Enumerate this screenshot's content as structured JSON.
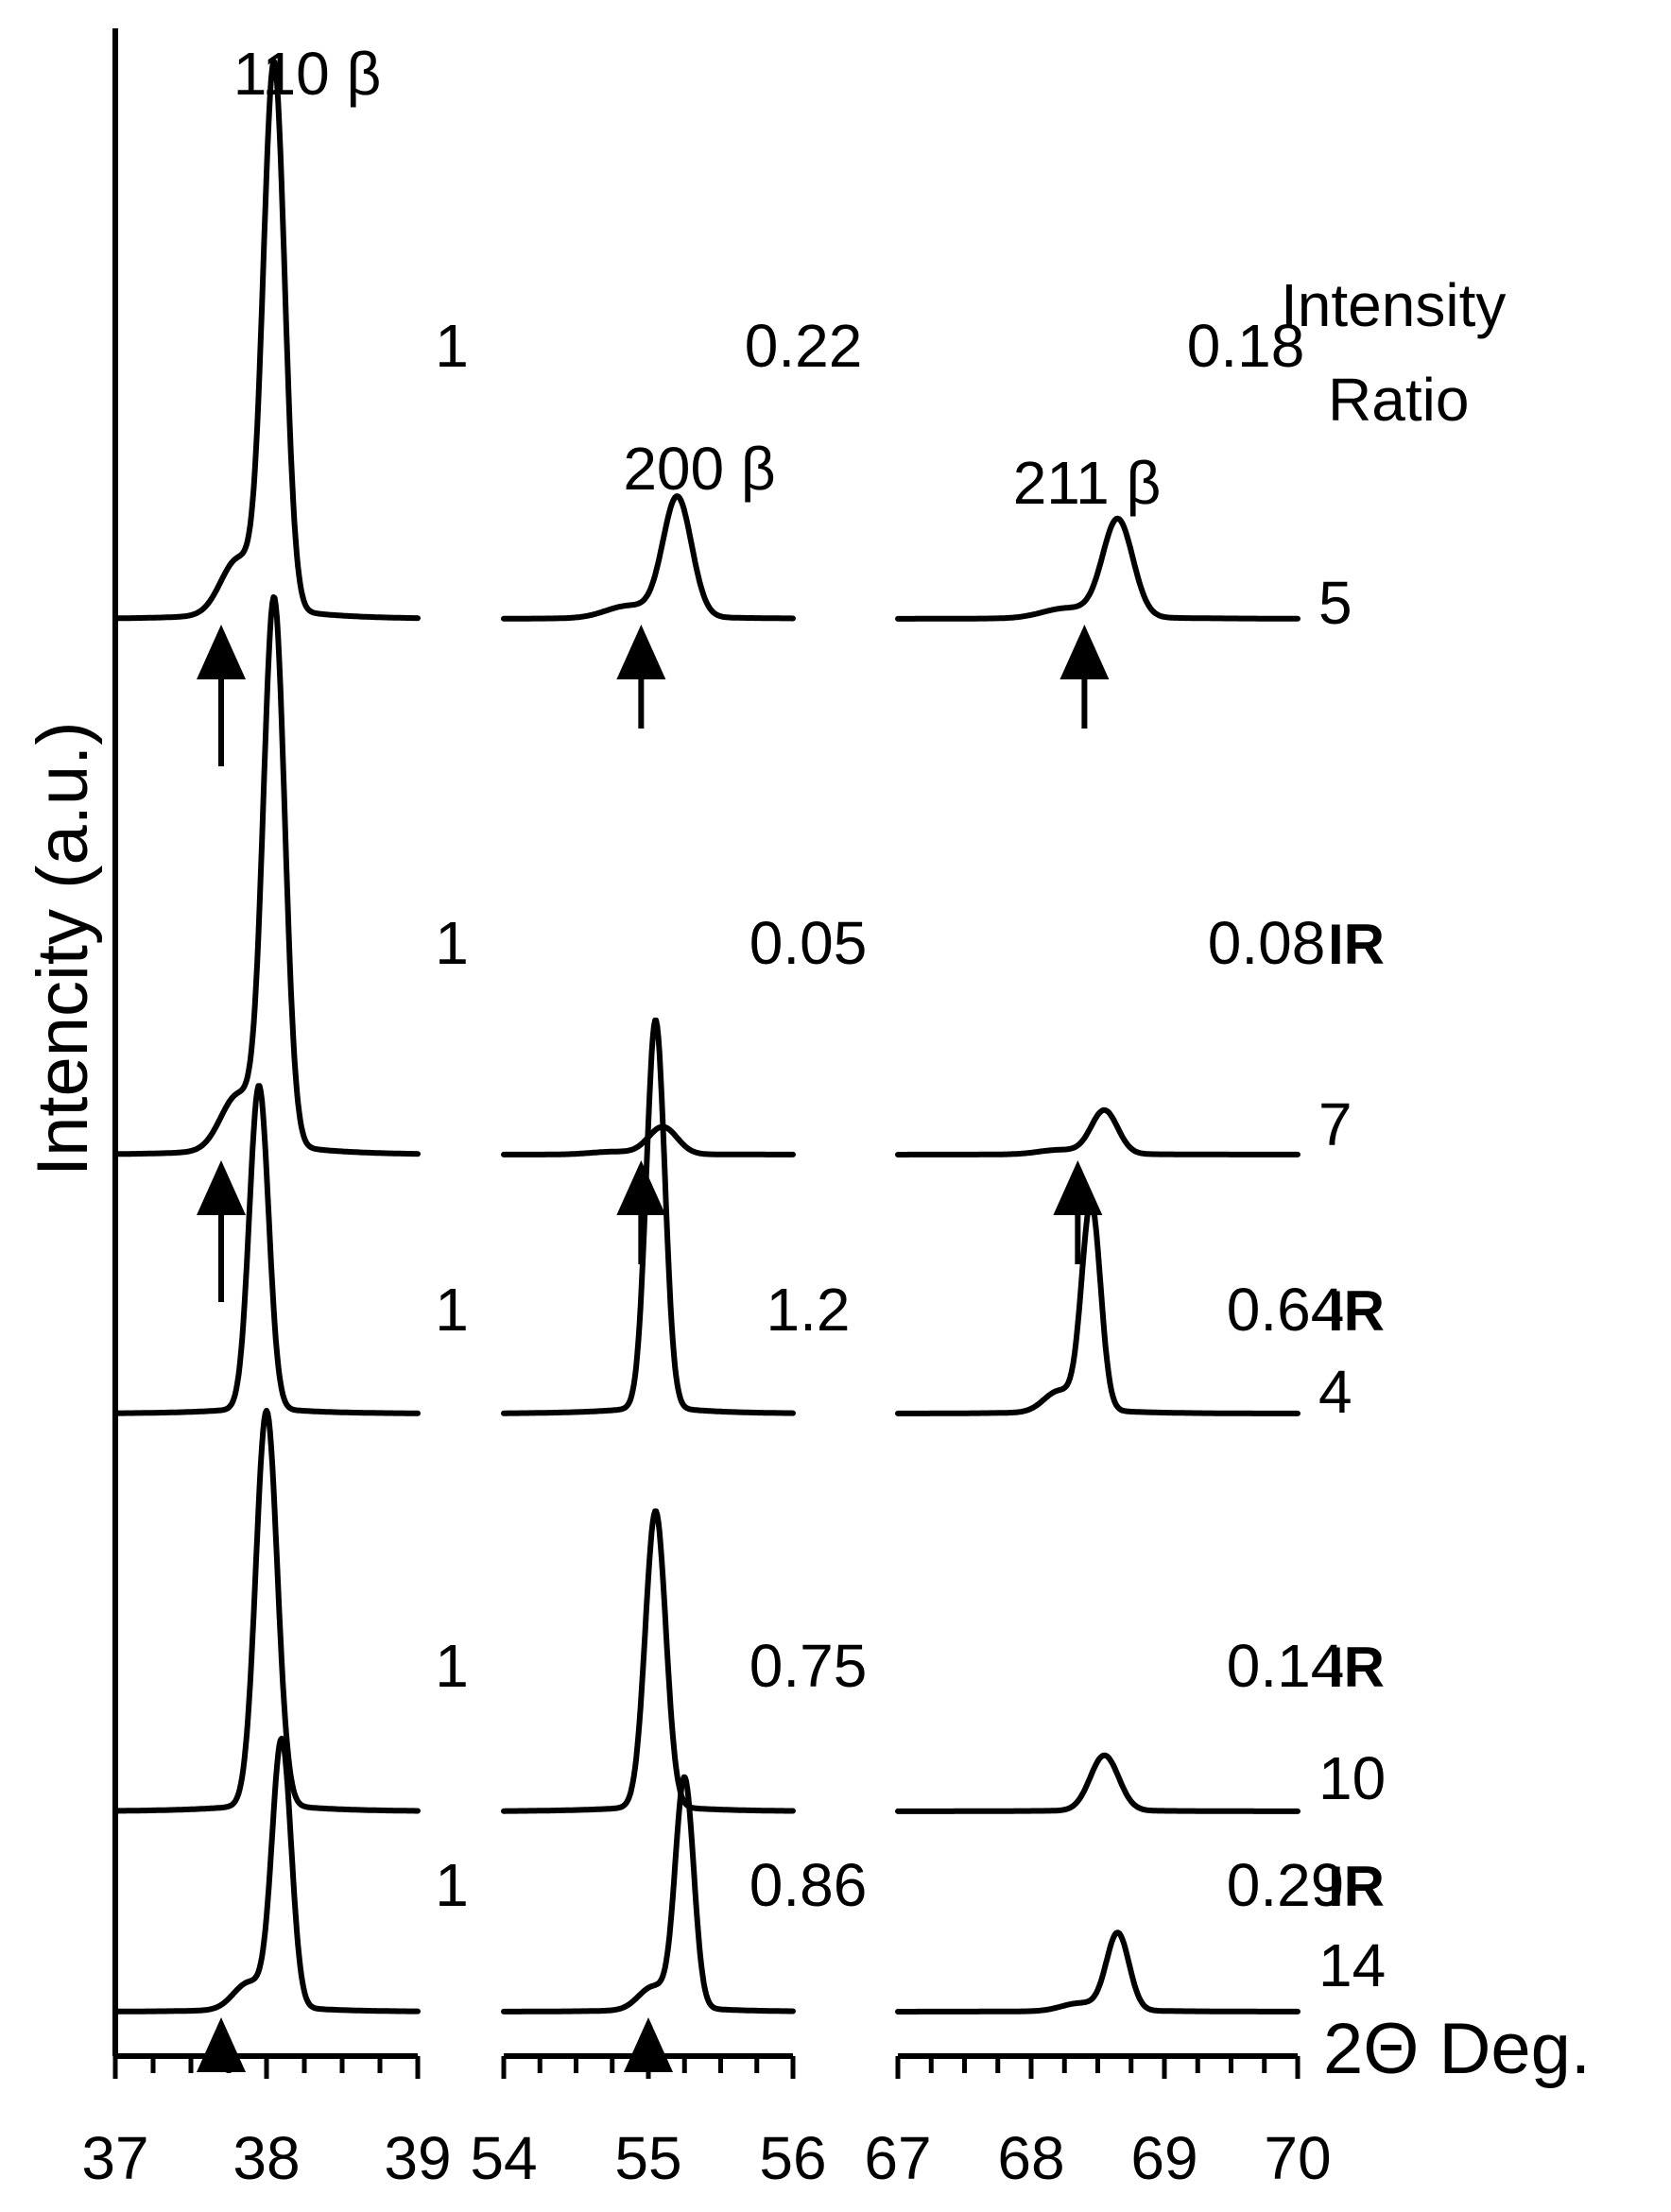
{
  "chart_data": {
    "type": "line",
    "title": "",
    "ylabel": "Intencity (a.u.)",
    "xlabel": "2Θ Deg.",
    "grid": false,
    "legend_placement": "right",
    "panels": [
      {
        "name": "panel-1",
        "xlim": [
          37,
          39
        ],
        "ticks": [
          "37",
          "38",
          "39"
        ],
        "peak_label": "110 β"
      },
      {
        "name": "panel-2",
        "xlim": [
          54,
          56
        ],
        "ticks": [
          "54",
          "55",
          "56"
        ],
        "peak_label": "200 β"
      },
      {
        "name": "panel-3",
        "xlim": [
          67,
          70
        ],
        "ticks": [
          "67",
          "68",
          "69",
          "70"
        ],
        "peak_label": "211 β"
      }
    ],
    "ratio_header": [
      "Intensity",
      "Ratio"
    ],
    "series": [
      {
        "name": "5",
        "tag": "",
        "ratios": [
          "1",
          "0.22",
          "0.18"
        ],
        "peaks": [
          {
            "pos": 38.05,
            "height": 1.0,
            "width": 0.1,
            "shoulder": true
          },
          {
            "pos": 55.2,
            "height": 0.22,
            "width": 0.14,
            "shoulder": true
          },
          {
            "pos": 68.65,
            "height": 0.18,
            "width": 0.16,
            "shoulder": true
          }
        ],
        "arrows": [
          37.7,
          54.95,
          68.4
        ]
      },
      {
        "name": "7",
        "tag": "IR",
        "ratios": [
          "1",
          "0.05",
          "0.08"
        ],
        "peaks": [
          {
            "pos": 38.05,
            "height": 1.0,
            "width": 0.1,
            "shoulder": true
          },
          {
            "pos": 55.1,
            "height": 0.05,
            "width": 0.14,
            "shoulder": true
          },
          {
            "pos": 68.55,
            "height": 0.08,
            "width": 0.14,
            "shoulder": true
          }
        ],
        "arrows": [
          37.7,
          54.95,
          68.35
        ]
      },
      {
        "name": "4",
        "tag": "IR",
        "ratios": [
          "1",
          "1.2",
          "0.64"
        ],
        "peaks": [
          {
            "pos": 37.95,
            "height": 1.0,
            "width": 0.09,
            "shoulder": false
          },
          {
            "pos": 55.05,
            "height": 1.2,
            "width": 0.09,
            "shoulder": false
          },
          {
            "pos": 68.45,
            "height": 0.64,
            "width": 0.1,
            "shoulder": true
          }
        ],
        "arrows": []
      },
      {
        "name": "10",
        "tag": "IR",
        "ratios": [
          "1",
          "0.75",
          "0.14"
        ],
        "peaks": [
          {
            "pos": 38.0,
            "height": 1.0,
            "width": 0.1,
            "shoulder": false
          },
          {
            "pos": 55.05,
            "height": 0.75,
            "width": 0.1,
            "shoulder": false
          },
          {
            "pos": 68.55,
            "height": 0.14,
            "width": 0.15,
            "shoulder": false
          }
        ],
        "arrows": []
      },
      {
        "name": "14",
        "tag": "IR",
        "ratios": [
          "1",
          "0.86",
          "0.29"
        ],
        "peaks": [
          {
            "pos": 38.1,
            "height": 1.0,
            "width": 0.09,
            "shoulder": true
          },
          {
            "pos": 55.25,
            "height": 0.86,
            "width": 0.09,
            "shoulder": true
          },
          {
            "pos": 68.65,
            "height": 0.29,
            "width": 0.12,
            "shoulder": true
          }
        ],
        "arrows": [
          37.7,
          55.0
        ]
      }
    ]
  }
}
